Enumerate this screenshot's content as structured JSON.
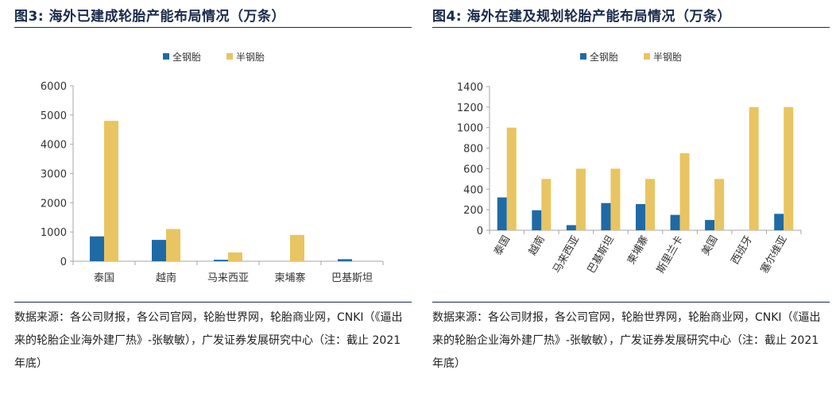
{
  "colors": {
    "full_steel": "#1f6aa5",
    "semi_steel": "#e8c562",
    "axis": "#a6a6a6",
    "title": "#1a2a4a"
  },
  "left": {
    "title": "图3:  海外已建成轮胎产能布局情况（万条）",
    "source": "数据来源：各公司财报，各公司官网，轮胎世界网，轮胎商业网，CNKI（《逼出来的轮胎企业海外建厂热》-张敏敏），广发证券发展研究中心（注：截止 2021 年底）"
  },
  "right": {
    "title": "图4:  海外在建及规划轮胎产能布局情况（万条）",
    "source": "数据来源：各公司财报，各公司官网，轮胎世界网，轮胎商业网，CNKI（《逼出来的轮胎企业海外建厂热》-张敏敏），广发证券发展研究中心（注：截止 2021 年底）"
  },
  "chart_data": [
    {
      "type": "bar",
      "title": "海外已建成轮胎产能布局情况（万条）",
      "categories": [
        "泰国",
        "越南",
        "马来西亚",
        "柬埔寨",
        "巴基斯坦"
      ],
      "series": [
        {
          "name": "全钢胎",
          "values": [
            850,
            730,
            50,
            0,
            70
          ]
        },
        {
          "name": "半钢胎",
          "values": [
            4800,
            1100,
            300,
            900,
            0
          ]
        }
      ],
      "ylim": [
        0,
        6000
      ],
      "yticks": [
        "0",
        "1000",
        "2000",
        "3000",
        "4000",
        "5000",
        "6000"
      ],
      "legend": "top-center",
      "grid": false
    },
    {
      "type": "bar",
      "title": "海外在建及规划轮胎产能布局情况（万条）",
      "categories": [
        "泰国",
        "越南",
        "马来西亚",
        "巴基斯坦",
        "柬埔寨",
        "斯里兰卡",
        "美国",
        "西班牙",
        "塞尔维亚"
      ],
      "series": [
        {
          "name": "全钢胎",
          "values": [
            320,
            195,
            50,
            265,
            255,
            150,
            100,
            0,
            160
          ]
        },
        {
          "name": "半钢胎",
          "values": [
            1000,
            500,
            600,
            600,
            500,
            750,
            500,
            1200,
            1200
          ]
        }
      ],
      "ylim": [
        0,
        1400
      ],
      "yticks": [
        "0",
        "200",
        "400",
        "600",
        "800",
        "1000",
        "1200",
        "1400"
      ],
      "legend": "top-center",
      "grid": false
    }
  ]
}
